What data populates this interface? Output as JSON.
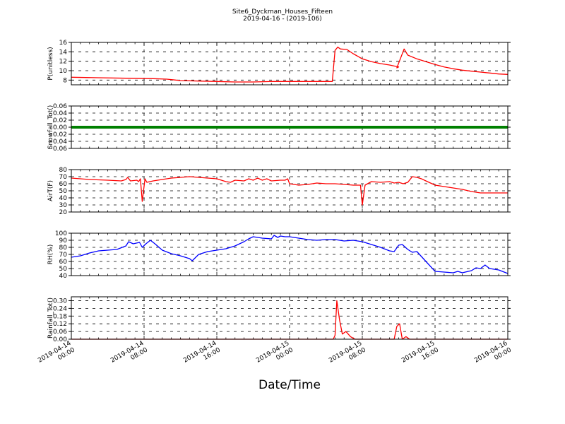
{
  "title": "Site6_Dyckman_Houses_Fifteen",
  "subtitle": "2019-04-16 - (2019-106)",
  "chart_data": {
    "xlabel": "Date/Time",
    "x_tick_labels": [
      [
        "2019-04-14",
        "00:00"
      ],
      [
        "2019-04-14",
        "08:00"
      ],
      [
        "2019-04-14",
        "16:00"
      ],
      [
        "2019-04-15",
        "00:00"
      ],
      [
        "2019-04-15",
        "08:00"
      ],
      [
        "2019-04-15",
        "16:00"
      ],
      [
        "2019-04-16",
        "00:00"
      ]
    ],
    "x_range_hours": [
      0,
      48
    ],
    "charts": [
      {
        "type": "line",
        "ylabel": "P(unitless)",
        "color": "#ff0000",
        "ylim": [
          7,
          16
        ],
        "yticks": [
          "8",
          "10",
          "12",
          "14",
          "16"
        ],
        "ytick_values": [
          8,
          10,
          12,
          14,
          16
        ],
        "points": [
          [
            0,
            8.6
          ],
          [
            3,
            8.5
          ],
          [
            6,
            8.4
          ],
          [
            9,
            8.3
          ],
          [
            10.5,
            8.2
          ],
          [
            12,
            7.9
          ],
          [
            14,
            7.8
          ],
          [
            16,
            7.7
          ],
          [
            18,
            7.6
          ],
          [
            20,
            7.6
          ],
          [
            22,
            7.7
          ],
          [
            24,
            7.7
          ],
          [
            26,
            7.7
          ],
          [
            28.7,
            7.7
          ],
          [
            29.0,
            14.3
          ],
          [
            29.3,
            15.0
          ],
          [
            29.6,
            14.6
          ],
          [
            30.3,
            14.5
          ],
          [
            31,
            13.6
          ],
          [
            32,
            12.5
          ],
          [
            33,
            11.9
          ],
          [
            34,
            11.5
          ],
          [
            35,
            11.2
          ],
          [
            36,
            10.8
          ],
          [
            35.8,
            10.6
          ],
          [
            36.6,
            14.6
          ],
          [
            37,
            13.3
          ],
          [
            38,
            12.5
          ],
          [
            39,
            11.9
          ],
          [
            40,
            11.3
          ],
          [
            41,
            10.8
          ],
          [
            42,
            10.4
          ],
          [
            43,
            10.1
          ],
          [
            44,
            9.9
          ],
          [
            45,
            9.7
          ],
          [
            46,
            9.5
          ],
          [
            47,
            9.3
          ],
          [
            48,
            9.2
          ]
        ]
      },
      {
        "type": "line",
        "ylabel": "Snowfall_Tot()",
        "color": "#008000",
        "ylim": [
          -0.06,
          0.06
        ],
        "yticks": [
          "0.06",
          "0.04",
          "0.02",
          "0.00",
          "−0.02",
          "−0.04",
          "−0.06"
        ],
        "ytick_values": [
          0.06,
          0.04,
          0.02,
          0,
          -0.02,
          -0.04,
          -0.06
        ],
        "points": [
          [
            0,
            0
          ],
          [
            48,
            0
          ]
        ]
      },
      {
        "type": "line",
        "ylabel": "AirT(F)",
        "color": "#ff0000",
        "ylim": [
          20,
          80
        ],
        "yticks": [
          "80",
          "70",
          "60",
          "50",
          "40",
          "30",
          "20"
        ],
        "ytick_values": [
          80,
          70,
          60,
          50,
          40,
          30,
          20
        ],
        "points": [
          [
            0,
            68
          ],
          [
            2,
            66
          ],
          [
            4,
            65
          ],
          [
            5.5,
            64
          ],
          [
            6,
            66
          ],
          [
            6.2,
            69
          ],
          [
            6.5,
            64
          ],
          [
            7.2,
            65
          ],
          [
            7.4,
            63
          ],
          [
            7.6,
            67
          ],
          [
            7.8,
            35
          ],
          [
            8.1,
            67
          ],
          [
            8.3,
            62
          ],
          [
            9,
            64
          ],
          [
            10,
            66
          ],
          [
            11,
            68
          ],
          [
            12,
            69
          ],
          [
            13,
            70
          ],
          [
            14,
            69
          ],
          [
            15,
            68
          ],
          [
            16,
            67
          ],
          [
            17,
            63
          ],
          [
            17.5,
            62
          ],
          [
            18,
            65
          ],
          [
            19,
            64
          ],
          [
            19.5,
            67
          ],
          [
            20,
            65
          ],
          [
            20.5,
            68
          ],
          [
            21,
            65
          ],
          [
            21.5,
            67
          ],
          [
            22,
            64
          ],
          [
            23,
            65
          ],
          [
            23.5,
            65
          ],
          [
            23.8,
            67
          ],
          [
            24,
            60
          ],
          [
            25,
            58
          ],
          [
            26,
            59
          ],
          [
            27,
            61
          ],
          [
            28,
            60
          ],
          [
            29,
            60
          ],
          [
            30,
            59
          ],
          [
            31,
            58
          ],
          [
            31.8,
            58
          ],
          [
            32,
            30
          ],
          [
            32.3,
            58
          ],
          [
            33,
            63
          ],
          [
            34,
            62
          ],
          [
            35,
            63
          ],
          [
            35.5,
            61
          ],
          [
            36,
            62
          ],
          [
            36.5,
            60
          ],
          [
            37,
            62
          ],
          [
            37.5,
            70
          ],
          [
            38,
            69
          ],
          [
            38.5,
            67
          ],
          [
            39,
            64
          ],
          [
            40,
            58
          ],
          [
            41,
            56
          ],
          [
            42,
            54
          ],
          [
            43,
            52
          ],
          [
            44,
            49
          ],
          [
            45,
            47
          ],
          [
            46,
            47
          ],
          [
            48,
            47
          ]
        ]
      },
      {
        "type": "line",
        "ylabel": "RH(%)",
        "color": "#0000ff",
        "ylim": [
          40,
          100
        ],
        "yticks": [
          "100",
          "90",
          "80",
          "70",
          "60",
          "50",
          "40"
        ],
        "ytick_values": [
          100,
          90,
          80,
          70,
          60,
          50,
          40
        ],
        "points": [
          [
            0,
            66
          ],
          [
            1,
            68
          ],
          [
            2,
            72
          ],
          [
            3,
            75
          ],
          [
            4,
            76
          ],
          [
            5,
            77
          ],
          [
            6,
            82
          ],
          [
            6.3,
            88
          ],
          [
            6.8,
            85
          ],
          [
            7.5,
            87
          ],
          [
            7.8,
            80
          ],
          [
            8.2,
            85
          ],
          [
            8.7,
            90
          ],
          [
            9.2,
            85
          ],
          [
            10,
            76
          ],
          [
            11,
            71
          ],
          [
            12,
            68
          ],
          [
            13,
            64
          ],
          [
            13.3,
            61
          ],
          [
            14,
            70
          ],
          [
            15,
            74
          ],
          [
            16,
            76
          ],
          [
            17,
            78
          ],
          [
            18,
            82
          ],
          [
            19,
            88
          ],
          [
            19.5,
            92
          ],
          [
            20,
            95
          ],
          [
            21,
            93
          ],
          [
            22,
            92
          ],
          [
            22.3,
            97
          ],
          [
            22.7,
            94
          ],
          [
            23,
            96
          ],
          [
            23.5,
            95
          ],
          [
            24,
            95
          ],
          [
            25,
            93
          ],
          [
            26,
            91
          ],
          [
            27,
            90
          ],
          [
            28,
            91
          ],
          [
            29,
            91
          ],
          [
            30,
            89
          ],
          [
            31,
            90
          ],
          [
            32,
            88
          ],
          [
            33,
            84
          ],
          [
            34,
            80
          ],
          [
            35,
            75
          ],
          [
            35.5,
            74
          ],
          [
            36,
            83
          ],
          [
            36.4,
            84
          ],
          [
            37,
            77
          ],
          [
            37.5,
            73
          ],
          [
            38,
            74
          ],
          [
            38.5,
            67
          ],
          [
            39,
            60
          ],
          [
            40,
            46
          ],
          [
            41,
            45
          ],
          [
            42,
            44
          ],
          [
            42.5,
            46
          ],
          [
            43,
            44
          ],
          [
            44,
            47
          ],
          [
            44.5,
            51
          ],
          [
            45,
            50
          ],
          [
            45.5,
            55
          ],
          [
            46,
            50
          ],
          [
            47,
            48
          ],
          [
            48,
            43
          ]
        ]
      },
      {
        "type": "line",
        "ylabel": "Rainfall_Tot()",
        "color": "#ff0000",
        "ylim": [
          0,
          0.33
        ],
        "yticks": [
          "0.30",
          "0.24",
          "0.18",
          "0.12",
          "0.06",
          "0.00"
        ],
        "ytick_values": [
          0.3,
          0.24,
          0.18,
          0.12,
          0.06,
          0
        ],
        "points": [
          [
            0,
            0
          ],
          [
            28.8,
            0
          ],
          [
            29.0,
            0.03
          ],
          [
            29.2,
            0.3
          ],
          [
            29.5,
            0.15
          ],
          [
            29.8,
            0.04
          ],
          [
            30.2,
            0.06
          ],
          [
            30.7,
            0.02
          ],
          [
            31.2,
            0
          ],
          [
            35.5,
            0
          ],
          [
            35.8,
            0.1
          ],
          [
            36.1,
            0.12
          ],
          [
            36.4,
            0
          ],
          [
            36.8,
            0.02
          ],
          [
            37.2,
            0
          ],
          [
            48,
            0
          ]
        ]
      }
    ]
  }
}
